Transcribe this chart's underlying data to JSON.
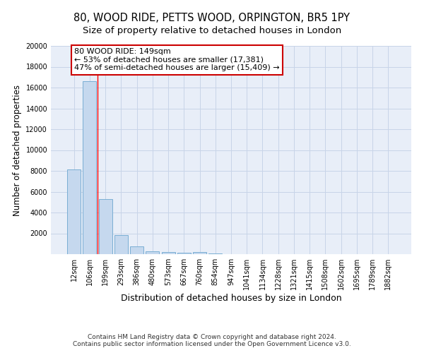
{
  "title": "80, WOOD RIDE, PETTS WOOD, ORPINGTON, BR5 1PY",
  "subtitle": "Size of property relative to detached houses in London",
  "xlabel": "Distribution of detached houses by size in London",
  "ylabel": "Number of detached properties",
  "categories": [
    "12sqm",
    "106sqm",
    "199sqm",
    "293sqm",
    "386sqm",
    "480sqm",
    "573sqm",
    "667sqm",
    "760sqm",
    "854sqm",
    "947sqm",
    "1041sqm",
    "1134sqm",
    "1228sqm",
    "1321sqm",
    "1415sqm",
    "1508sqm",
    "1602sqm",
    "1695sqm",
    "1789sqm",
    "1882sqm"
  ],
  "values": [
    8150,
    16600,
    5300,
    1800,
    750,
    300,
    200,
    120,
    200,
    50,
    0,
    0,
    0,
    0,
    0,
    0,
    0,
    0,
    0,
    0,
    0
  ],
  "bar_color": "#c5d8ee",
  "bar_edge_color": "#7aaed4",
  "grid_color": "#c8d4e8",
  "background_color": "#e8eef8",
  "red_line_x": 1.5,
  "annotation_text": "80 WOOD RIDE: 149sqm\n← 53% of detached houses are smaller (17,381)\n47% of semi-detached houses are larger (15,409) →",
  "annotation_box_color": "#ffffff",
  "annotation_box_edge": "#cc0000",
  "ylim": [
    0,
    20000
  ],
  "yticks": [
    0,
    2000,
    4000,
    6000,
    8000,
    10000,
    12000,
    14000,
    16000,
    18000,
    20000
  ],
  "footer_line1": "Contains HM Land Registry data © Crown copyright and database right 2024.",
  "footer_line2": "Contains public sector information licensed under the Open Government Licence v3.0.",
  "title_fontsize": 10.5,
  "subtitle_fontsize": 9.5,
  "tick_fontsize": 7,
  "ylabel_fontsize": 8.5,
  "xlabel_fontsize": 9,
  "footer_fontsize": 6.5
}
